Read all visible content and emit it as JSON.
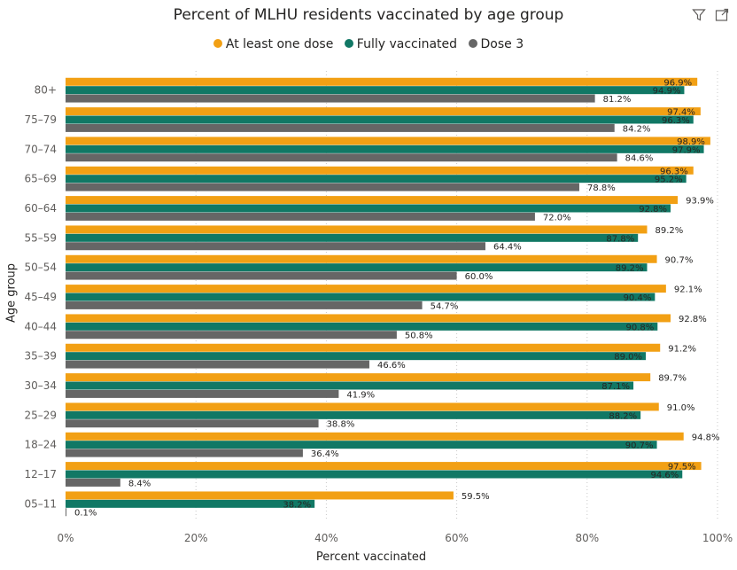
{
  "chart_data": {
    "type": "bar",
    "orientation": "horizontal",
    "title": "Percent of MLHU residents vaccinated by age group",
    "xlabel": "Percent vaccinated",
    "ylabel": "Age group",
    "xlim": [
      0,
      100
    ],
    "xticks": [
      "0%",
      "20%",
      "40%",
      "60%",
      "80%",
      "100%"
    ],
    "grid": "vertical dotted",
    "legend": "top-center",
    "categories": [
      "80+",
      "75–79",
      "70–74",
      "65–69",
      "60–64",
      "55–59",
      "50–54",
      "45–49",
      "40–44",
      "35–39",
      "30–34",
      "25–29",
      "18–24",
      "12–17",
      "05–11"
    ],
    "series": [
      {
        "name": "At least one dose",
        "color": "#F2A014",
        "values": [
          96.9,
          97.4,
          98.9,
          96.3,
          93.9,
          89.2,
          90.7,
          92.1,
          92.8,
          91.2,
          89.7,
          91.0,
          94.8,
          97.5,
          59.5
        ],
        "labels": [
          "96.9%",
          "97.4%",
          "98.9%",
          "96.3%",
          "93.9%",
          "89.2%",
          "90.7%",
          "92.1%",
          "92.8%",
          "91.2%",
          "89.7%",
          "91.0%",
          "94.8%",
          "97.5%",
          "59.5%"
        ]
      },
      {
        "name": "Fully vaccinated",
        "color": "#117865",
        "values": [
          94.9,
          96.3,
          97.9,
          95.2,
          92.8,
          87.8,
          89.2,
          90.4,
          90.8,
          89.0,
          87.1,
          88.2,
          90.7,
          94.6,
          38.2
        ],
        "labels": [
          "94.9%",
          "96.3%",
          "97.9%",
          "95.2%",
          "92.8%",
          "87.8%",
          "89.2%",
          "90.4%",
          "90.8%",
          "89.0%",
          "87.1%",
          "88.2%",
          "90.7%",
          "94.6%",
          "38.2%"
        ]
      },
      {
        "name": "Dose 3",
        "color": "#666666",
        "values": [
          81.2,
          84.2,
          84.6,
          78.8,
          72.0,
          64.4,
          60.0,
          54.7,
          50.8,
          46.6,
          41.9,
          38.8,
          36.4,
          8.4,
          0.1
        ],
        "labels": [
          "81.2%",
          "84.2%",
          "84.6%",
          "78.8%",
          "72.0%",
          "64.4%",
          "60.0%",
          "54.7%",
          "50.8%",
          "46.6%",
          "41.9%",
          "38.8%",
          "36.4%",
          "8.4%",
          "0.1%"
        ]
      }
    ]
  },
  "toolbar": {
    "filter_icon": "filter-icon",
    "focus_icon": "focus-mode-icon"
  }
}
